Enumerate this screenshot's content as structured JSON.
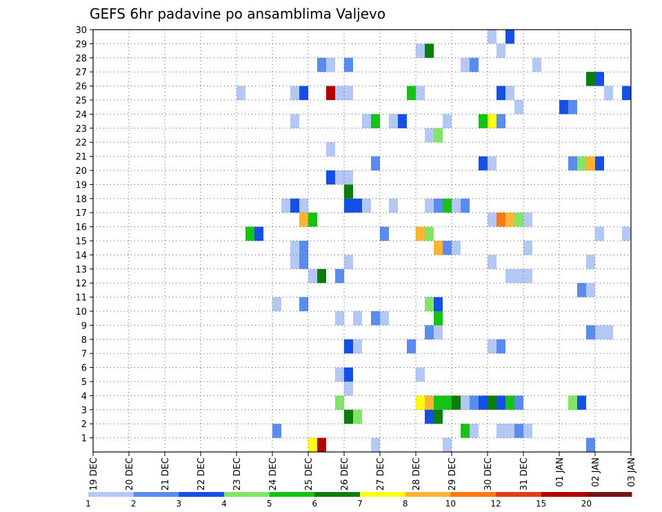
{
  "chart_data": {
    "type": "heatmap",
    "title": "GEFS 6hr padavine po ansamblima Valjevo",
    "x_labels": [
      "19 DEC",
      "20 DEC",
      "21 DEC",
      "22 DEC",
      "23 DEC",
      "24 DEC",
      "25 DEC",
      "26 DEC",
      "27 DEC",
      "28 DEC",
      "29 DEC",
      "30 DEC",
      "31 DEC",
      "01 JAN",
      "02 JAN",
      "03 JAN"
    ],
    "x_range_days": [
      0,
      15
    ],
    "y_labels": [
      "1",
      "2",
      "3",
      "4",
      "5",
      "6",
      "7",
      "8",
      "9",
      "10",
      "11",
      "12",
      "13",
      "14",
      "15",
      "16",
      "17",
      "18",
      "19",
      "20",
      "21",
      "22",
      "23",
      "24",
      "25",
      "26",
      "27",
      "28",
      "29",
      "30"
    ],
    "y_range": [
      0,
      30
    ],
    "grid": true,
    "colorbar": {
      "colors": [
        "#b4c8f5",
        "#5a8cf0",
        "#1450e6",
        "#82e664",
        "#14c314",
        "#0a7d0a",
        "#ffff14",
        "#ffb432",
        "#ff7814",
        "#e63c14",
        "#b40000",
        "#781414"
      ],
      "tick_labels": [
        "1",
        "2",
        "3",
        "4",
        "5",
        "6",
        "7",
        "8",
        "10",
        "12",
        "15",
        "20"
      ]
    },
    "cells": [
      [
        6.0,
        0,
        "#ffff14"
      ],
      [
        6.25,
        0,
        "#b40000"
      ],
      [
        7.75,
        0,
        "#b4c8f5"
      ],
      [
        9.75,
        0,
        "#b4c8f5"
      ],
      [
        13.75,
        0,
        "#5a8cf0"
      ],
      [
        5.0,
        1,
        "#5a8cf0"
      ],
      [
        10.25,
        1,
        "#14c314"
      ],
      [
        10.5,
        1,
        "#b4c8f5"
      ],
      [
        11.25,
        1,
        "#b4c8f5"
      ],
      [
        11.5,
        1,
        "#b4c8f5"
      ],
      [
        11.75,
        1,
        "#5a8cf0"
      ],
      [
        12.0,
        1,
        "#b4c8f5"
      ],
      [
        7.0,
        2,
        "#0a7d0a"
      ],
      [
        7.25,
        2,
        "#82e664"
      ],
      [
        9.25,
        2,
        "#1450e6"
      ],
      [
        9.5,
        2,
        "#0a7d0a"
      ],
      [
        6.75,
        3,
        "#82e664"
      ],
      [
        9.0,
        3,
        "#ffff14"
      ],
      [
        9.25,
        3,
        "#ffb432"
      ],
      [
        9.5,
        3,
        "#14c314"
      ],
      [
        9.75,
        3,
        "#14c314"
      ],
      [
        10.0,
        3,
        "#0a7d0a"
      ],
      [
        10.25,
        3,
        "#b4c8f5"
      ],
      [
        10.5,
        3,
        "#5a8cf0"
      ],
      [
        10.75,
        3,
        "#1450e6"
      ],
      [
        11.0,
        3,
        "#0a7d0a"
      ],
      [
        11.25,
        3,
        "#1450e6"
      ],
      [
        11.5,
        3,
        "#14c314"
      ],
      [
        11.75,
        3,
        "#5a8cf0"
      ],
      [
        13.25,
        3,
        "#82e664"
      ],
      [
        13.5,
        3,
        "#1450e6"
      ],
      [
        7.0,
        4,
        "#b4c8f5"
      ],
      [
        6.75,
        5,
        "#b4c8f5"
      ],
      [
        7.0,
        5,
        "#1450e6"
      ],
      [
        9.0,
        5,
        "#b4c8f5"
      ],
      [
        7.0,
        7,
        "#1450e6"
      ],
      [
        7.25,
        7,
        "#b4c8f5"
      ],
      [
        8.75,
        7,
        "#5a8cf0"
      ],
      [
        11.0,
        7,
        "#b4c8f5"
      ],
      [
        11.25,
        7,
        "#5a8cf0"
      ],
      [
        9.25,
        8,
        "#5a8cf0"
      ],
      [
        9.5,
        8,
        "#b4c8f5"
      ],
      [
        13.75,
        8,
        "#5a8cf0"
      ],
      [
        14.0,
        8,
        "#b4c8f5"
      ],
      [
        14.25,
        8,
        "#b4c8f5"
      ],
      [
        6.75,
        9,
        "#b4c8f5"
      ],
      [
        7.25,
        9,
        "#b4c8f5"
      ],
      [
        7.75,
        9,
        "#5a8cf0"
      ],
      [
        8.0,
        9,
        "#b4c8f5"
      ],
      [
        9.5,
        9,
        "#14c314"
      ],
      [
        5.0,
        10,
        "#b4c8f5"
      ],
      [
        5.75,
        10,
        "#5a8cf0"
      ],
      [
        9.25,
        10,
        "#82e664"
      ],
      [
        9.5,
        10,
        "#1450e6"
      ],
      [
        13.5,
        11,
        "#5a8cf0"
      ],
      [
        13.75,
        11,
        "#b4c8f5"
      ],
      [
        6.0,
        12,
        "#b4c8f5"
      ],
      [
        6.25,
        12,
        "#0a7d0a"
      ],
      [
        6.75,
        12,
        "#5a8cf0"
      ],
      [
        11.5,
        12,
        "#b4c8f5"
      ],
      [
        11.75,
        12,
        "#b4c8f5"
      ],
      [
        12.0,
        12,
        "#b4c8f5"
      ],
      [
        5.5,
        13,
        "#b4c8f5"
      ],
      [
        5.75,
        13,
        "#5a8cf0"
      ],
      [
        7.0,
        13,
        "#b4c8f5"
      ],
      [
        11.0,
        13,
        "#b4c8f5"
      ],
      [
        13.75,
        13,
        "#b4c8f5"
      ],
      [
        5.5,
        14,
        "#b4c8f5"
      ],
      [
        5.75,
        14,
        "#5a8cf0"
      ],
      [
        9.5,
        14,
        "#ffb432"
      ],
      [
        9.75,
        14,
        "#5a8cf0"
      ],
      [
        10.0,
        14,
        "#b4c8f5"
      ],
      [
        12.0,
        14,
        "#b4c8f5"
      ],
      [
        4.25,
        15,
        "#14c314"
      ],
      [
        4.5,
        15,
        "#1450e6"
      ],
      [
        8.0,
        15,
        "#5a8cf0"
      ],
      [
        9.0,
        15,
        "#ffb432"
      ],
      [
        9.25,
        15,
        "#82e664"
      ],
      [
        14.0,
        15,
        "#b4c8f5"
      ],
      [
        14.75,
        15,
        "#b4c8f5"
      ],
      [
        5.75,
        16,
        "#ffb432"
      ],
      [
        6.0,
        16,
        "#14c314"
      ],
      [
        11.0,
        16,
        "#b4c8f5"
      ],
      [
        11.25,
        16,
        "#ff7814"
      ],
      [
        11.5,
        16,
        "#ffb432"
      ],
      [
        11.75,
        16,
        "#82e664"
      ],
      [
        12.0,
        16,
        "#b4c8f5"
      ],
      [
        5.25,
        17,
        "#b4c8f5"
      ],
      [
        5.5,
        17,
        "#1450e6"
      ],
      [
        5.75,
        17,
        "#b4c8f5"
      ],
      [
        7.0,
        17,
        "#1450e6"
      ],
      [
        7.25,
        17,
        "#1450e6"
      ],
      [
        7.5,
        17,
        "#b4c8f5"
      ],
      [
        8.25,
        17,
        "#b4c8f5"
      ],
      [
        9.25,
        17,
        "#b4c8f5"
      ],
      [
        9.5,
        17,
        "#5a8cf0"
      ],
      [
        9.75,
        17,
        "#14c314"
      ],
      [
        10.0,
        17,
        "#b4c8f5"
      ],
      [
        10.25,
        17,
        "#5a8cf0"
      ],
      [
        7.0,
        18,
        "#0a7d0a"
      ],
      [
        6.5,
        19,
        "#1450e6"
      ],
      [
        6.75,
        19,
        "#b4c8f5"
      ],
      [
        7.0,
        19,
        "#b4c8f5"
      ],
      [
        7.75,
        20,
        "#5a8cf0"
      ],
      [
        10.75,
        20,
        "#1450e6"
      ],
      [
        11.0,
        20,
        "#b4c8f5"
      ],
      [
        13.25,
        20,
        "#5a8cf0"
      ],
      [
        13.5,
        20,
        "#82e664"
      ],
      [
        13.75,
        20,
        "#ffb432"
      ],
      [
        14.0,
        20,
        "#1450e6"
      ],
      [
        6.5,
        21,
        "#b4c8f5"
      ],
      [
        9.25,
        22,
        "#b4c8f5"
      ],
      [
        9.5,
        22,
        "#82e664"
      ],
      [
        5.5,
        23,
        "#b4c8f5"
      ],
      [
        7.5,
        23,
        "#b4c8f5"
      ],
      [
        7.75,
        23,
        "#14c314"
      ],
      [
        8.25,
        23,
        "#b4c8f5"
      ],
      [
        8.5,
        23,
        "#1450e6"
      ],
      [
        9.75,
        23,
        "#b4c8f5"
      ],
      [
        10.75,
        23,
        "#14c314"
      ],
      [
        11.0,
        23,
        "#ffff14"
      ],
      [
        11.25,
        23,
        "#5a8cf0"
      ],
      [
        11.75,
        24,
        "#b4c8f5"
      ],
      [
        13.0,
        24,
        "#1450e6"
      ],
      [
        13.25,
        24,
        "#5a8cf0"
      ],
      [
        4.0,
        25,
        "#b4c8f5"
      ],
      [
        5.5,
        25,
        "#b4c8f5"
      ],
      [
        5.75,
        25,
        "#1450e6"
      ],
      [
        6.5,
        25,
        "#b40000"
      ],
      [
        6.75,
        25,
        "#b4c8f5"
      ],
      [
        7.0,
        25,
        "#b4c8f5"
      ],
      [
        8.75,
        25,
        "#14c314"
      ],
      [
        9.0,
        25,
        "#b4c8f5"
      ],
      [
        11.25,
        25,
        "#1450e6"
      ],
      [
        11.5,
        25,
        "#b4c8f5"
      ],
      [
        14.25,
        25,
        "#b4c8f5"
      ],
      [
        14.75,
        25,
        "#1450e6"
      ],
      [
        13.75,
        26,
        "#0a7d0a"
      ],
      [
        14.0,
        26,
        "#1450e6"
      ],
      [
        6.25,
        27,
        "#5a8cf0"
      ],
      [
        6.5,
        27,
        "#b4c8f5"
      ],
      [
        7.0,
        27,
        "#5a8cf0"
      ],
      [
        10.25,
        27,
        "#b4c8f5"
      ],
      [
        10.5,
        27,
        "#5a8cf0"
      ],
      [
        12.25,
        27,
        "#b4c8f5"
      ],
      [
        9.0,
        28,
        "#b4c8f5"
      ],
      [
        9.25,
        28,
        "#0a7d0a"
      ],
      [
        11.25,
        28,
        "#b4c8f5"
      ],
      [
        11.0,
        29,
        "#b4c8f5"
      ],
      [
        11.5,
        29,
        "#1450e6"
      ]
    ]
  }
}
